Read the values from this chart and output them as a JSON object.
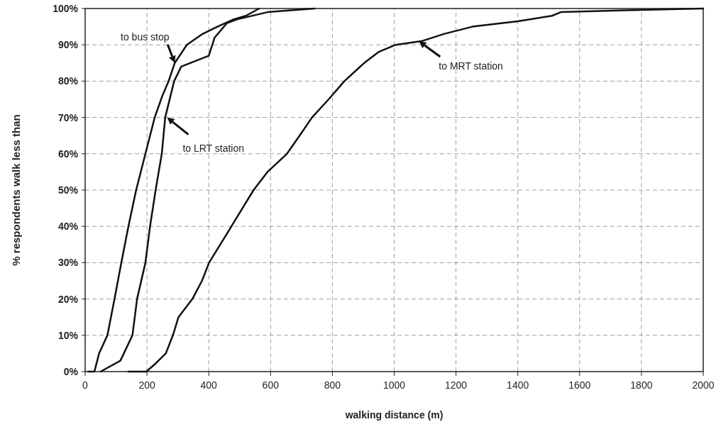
{
  "chart_data": {
    "type": "line",
    "xlabel": "walking distance (m)",
    "ylabel": "% respondents walk less than",
    "xlim": [
      0,
      2000
    ],
    "ylim": [
      0,
      100
    ],
    "xticks": [
      0,
      200,
      400,
      600,
      800,
      1000,
      1200,
      1400,
      1600,
      1800,
      2000
    ],
    "yticks": [
      {
        "value": 0,
        "label": "0%"
      },
      {
        "value": 10,
        "label": "10%"
      },
      {
        "value": 20,
        "label": "20%"
      },
      {
        "value": 30,
        "label": "30%"
      },
      {
        "value": 40,
        "label": "40%"
      },
      {
        "value": 50,
        "label": "50%"
      },
      {
        "value": 60,
        "label": "60%"
      },
      {
        "value": 70,
        "label": "70%"
      },
      {
        "value": 80,
        "label": "80%"
      },
      {
        "value": 90,
        "label": "90%"
      },
      {
        "value": 100,
        "label": "100%"
      }
    ],
    "grid": true,
    "marker": "none",
    "line_style": "solid",
    "series": [
      {
        "color": "#111111",
        "x": [
          10,
          30,
          45,
          72,
          95,
          117,
          140,
          165,
          180,
          195,
          210,
          225,
          250,
          270,
          290,
          329,
          380,
          428,
          480,
          520,
          563
        ],
        "values": [
          0,
          0,
          5,
          10,
          20,
          30,
          40,
          50,
          55,
          60,
          65,
          70,
          76,
          80,
          85,
          90,
          93,
          95,
          97,
          98,
          100
        ]
      },
      {
        "color": "#111111",
        "x": [
          50,
          114,
          153,
          168,
          195,
          210,
          228,
          248,
          259,
          288,
          311,
          400,
          419,
          459,
          491,
          590,
          743
        ],
        "values": [
          0,
          3,
          10,
          20,
          30,
          40,
          50,
          60,
          70,
          80,
          84,
          87,
          92,
          96,
          97,
          99,
          100
        ]
      },
      {
        "color": "#111111",
        "x": [
          140,
          198,
          225,
          261,
          284,
          302,
          347,
          378,
          401,
          459,
          509,
          545,
          590,
          653,
          694,
          734,
          788,
          839,
          903,
          949,
          1005,
          1088,
          1161,
          1253,
          1400,
          1511,
          1539,
          1750,
          2000
        ],
        "values": [
          0,
          0,
          2,
          5,
          10,
          15,
          20,
          25,
          30,
          38,
          45,
          50,
          55,
          60,
          65,
          70,
          75,
          80,
          85,
          88,
          90,
          91,
          93,
          95,
          96.5,
          98,
          99,
          99.5,
          100
        ]
      }
    ],
    "annotations": [
      {
        "text": "to bus stop",
        "x": 290,
        "y": 85
      },
      {
        "text": "to LRT station",
        "x": 265,
        "y": 70
      },
      {
        "text": "to MRT station",
        "x": 1080,
        "y": 91
      }
    ]
  }
}
